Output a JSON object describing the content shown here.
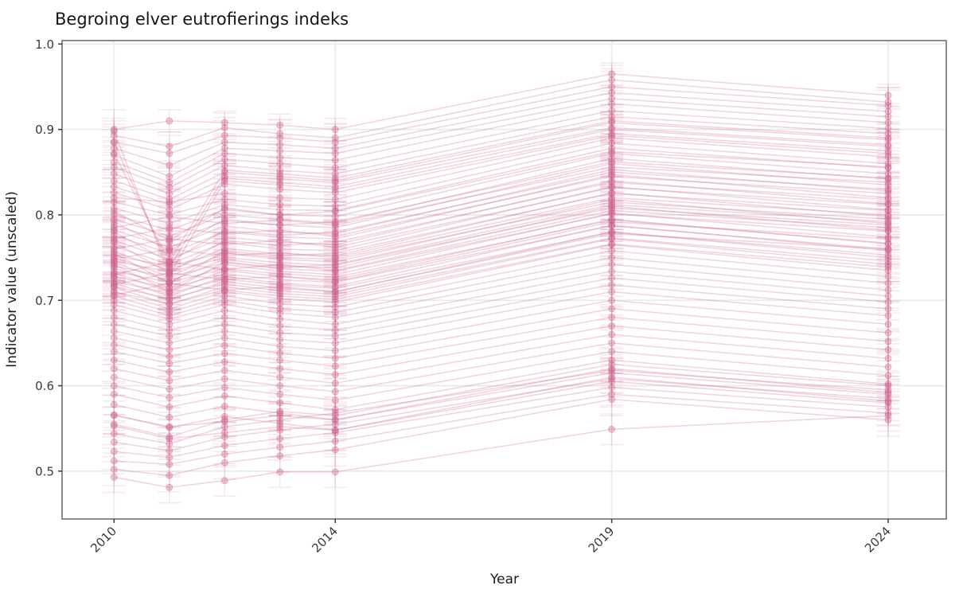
{
  "chart_data": {
    "type": "line",
    "title": "Begroing elver eutrofierings indeks",
    "xlabel": "Year",
    "ylabel": "Indicator value (unscaled)",
    "grid": true,
    "legend": false,
    "xlim": [
      2009.06,
      2025.05
    ],
    "ylim": [
      0.444,
      1.004
    ],
    "x_ticks": [
      2010,
      2014,
      2019,
      2024
    ],
    "x_tick_labels": [
      "2010",
      "2014",
      "2019",
      "2024"
    ],
    "y_ticks": [
      0.5,
      0.6,
      0.7,
      0.8,
      0.9,
      1.0
    ],
    "y_tick_labels": [
      "0.5",
      "0.6",
      "0.7",
      "0.8",
      "0.9",
      "1.0"
    ],
    "years": [
      2010,
      2011,
      2012,
      2013,
      2014,
      2019,
      2024
    ],
    "series_color": "#cc6690",
    "series": [
      {
        "v": [
          0.9,
          0.91,
          0.908,
          0.905,
          0.9,
          0.965,
          0.94
        ],
        "e": 0.013
      },
      {
        "v": [
          0.893,
          0.88,
          0.902,
          0.895,
          0.89,
          0.958,
          0.932
        ],
        "e": 0.017
      },
      {
        "v": [
          0.885,
          0.872,
          0.893,
          0.89,
          0.885,
          0.95,
          0.928
        ],
        "e": 0.021
      },
      {
        "v": [
          0.878,
          0.858,
          0.885,
          0.882,
          0.878,
          0.943,
          0.921
        ],
        "e": 0.025
      },
      {
        "v": [
          0.87,
          0.845,
          0.878,
          0.875,
          0.872,
          0.936,
          0.915
        ],
        "e": 0.015
      },
      {
        "v": [
          0.862,
          0.838,
          0.872,
          0.867,
          0.864,
          0.93,
          0.908
        ],
        "e": 0.019
      },
      {
        "v": [
          0.856,
          0.832,
          0.865,
          0.86,
          0.855,
          0.922,
          0.901
        ],
        "e": 0.023
      },
      {
        "v": [
          0.848,
          0.825,
          0.858,
          0.852,
          0.848,
          0.915,
          0.895
        ],
        "e": 0.011
      },
      {
        "v": [
          0.84,
          0.818,
          0.85,
          0.845,
          0.84,
          0.908,
          0.888
        ],
        "e": 0.013
      },
      {
        "v": [
          0.833,
          0.812,
          0.843,
          0.838,
          0.833,
          0.9,
          0.88
        ],
        "e": 0.017
      },
      {
        "v": [
          0.826,
          0.806,
          0.836,
          0.83,
          0.826,
          0.893,
          0.872
        ],
        "e": 0.021
      },
      {
        "v": [
          0.898,
          0.73,
          0.84,
          0.835,
          0.83,
          0.895,
          0.875
        ],
        "e": 0.025
      },
      {
        "v": [
          0.885,
          0.738,
          0.845,
          0.842,
          0.838,
          0.902,
          0.882
        ],
        "e": 0.015
      },
      {
        "v": [
          0.872,
          0.745,
          0.852,
          0.848,
          0.843,
          0.91,
          0.89
        ],
        "e": 0.019
      },
      {
        "v": [
          0.82,
          0.815,
          0.825,
          0.82,
          0.818,
          0.89,
          0.868
        ],
        "e": 0.023
      },
      {
        "v": [
          0.815,
          0.8,
          0.818,
          0.812,
          0.81,
          0.884,
          0.86
        ],
        "e": 0.011
      },
      {
        "v": [
          0.808,
          0.79,
          0.812,
          0.806,
          0.805,
          0.878,
          0.855
        ],
        "e": 0.013
      },
      {
        "v": [
          0.8,
          0.782,
          0.806,
          0.8,
          0.798,
          0.872,
          0.848
        ],
        "e": 0.017
      },
      {
        "v": [
          0.795,
          0.775,
          0.8,
          0.795,
          0.79,
          0.866,
          0.842
        ],
        "e": 0.021
      },
      {
        "v": [
          0.788,
          0.768,
          0.793,
          0.788,
          0.785,
          0.86,
          0.835
        ],
        "e": 0.025
      },
      {
        "v": [
          0.782,
          0.762,
          0.787,
          0.78,
          0.778,
          0.853,
          0.828
        ],
        "e": 0.015
      },
      {
        "v": [
          0.776,
          0.755,
          0.78,
          0.774,
          0.772,
          0.847,
          0.82
        ],
        "e": 0.019
      },
      {
        "v": [
          0.77,
          0.748,
          0.774,
          0.768,
          0.765,
          0.84,
          0.813
        ],
        "e": 0.023
      },
      {
        "v": [
          0.763,
          0.742,
          0.768,
          0.76,
          0.758,
          0.833,
          0.806
        ],
        "e": 0.011
      },
      {
        "v": [
          0.757,
          0.735,
          0.761,
          0.754,
          0.752,
          0.826,
          0.798
        ],
        "e": 0.013
      },
      {
        "v": [
          0.75,
          0.728,
          0.755,
          0.748,
          0.745,
          0.818,
          0.79
        ],
        "e": 0.017
      },
      {
        "v": [
          0.744,
          0.722,
          0.748,
          0.74,
          0.738,
          0.81,
          0.782
        ],
        "e": 0.021
      },
      {
        "v": [
          0.738,
          0.715,
          0.742,
          0.734,
          0.73,
          0.802,
          0.774
        ],
        "e": 0.025
      },
      {
        "v": [
          0.732,
          0.71,
          0.735,
          0.728,
          0.724,
          0.795,
          0.766
        ],
        "e": 0.015
      },
      {
        "v": [
          0.726,
          0.705,
          0.728,
          0.72,
          0.716,
          0.788,
          0.758
        ],
        "e": 0.019
      },
      {
        "v": [
          0.72,
          0.7,
          0.722,
          0.714,
          0.71,
          0.78,
          0.75
        ],
        "e": 0.023
      },
      {
        "v": [
          0.715,
          0.695,
          0.716,
          0.708,
          0.704,
          0.772,
          0.742
        ],
        "e": 0.011
      },
      {
        "v": [
          0.71,
          0.69,
          0.71,
          0.702,
          0.698,
          0.765,
          0.735
        ],
        "e": 0.013
      },
      {
        "v": [
          0.705,
          0.686,
          0.705,
          0.696,
          0.692,
          0.758,
          0.728
        ],
        "e": 0.017
      },
      {
        "v": [
          0.7,
          0.682,
          0.7,
          0.69,
          0.686,
          0.75,
          0.72
        ],
        "e": 0.021
      },
      {
        "v": [
          0.748,
          0.76,
          0.752,
          0.756,
          0.75,
          0.82,
          0.8
        ],
        "e": 0.025
      },
      {
        "v": [
          0.76,
          0.772,
          0.765,
          0.77,
          0.762,
          0.832,
          0.812
        ],
        "e": 0.015
      },
      {
        "v": [
          0.772,
          0.785,
          0.778,
          0.782,
          0.775,
          0.845,
          0.825
        ],
        "e": 0.019
      },
      {
        "v": [
          0.785,
          0.798,
          0.79,
          0.794,
          0.788,
          0.856,
          0.838
        ],
        "e": 0.023
      },
      {
        "v": [
          0.73,
          0.745,
          0.736,
          0.742,
          0.735,
          0.805,
          0.785
        ],
        "e": 0.011
      },
      {
        "v": [
          0.718,
          0.732,
          0.724,
          0.728,
          0.722,
          0.792,
          0.772
        ],
        "e": 0.013
      },
      {
        "v": [
          0.706,
          0.72,
          0.712,
          0.716,
          0.71,
          0.778,
          0.76
        ],
        "e": 0.017
      },
      {
        "v": [
          0.742,
          0.71,
          0.745,
          0.738,
          0.742,
          0.812,
          0.792
        ],
        "e": 0.021
      },
      {
        "v": [
          0.755,
          0.72,
          0.758,
          0.752,
          0.755,
          0.825,
          0.805
        ],
        "e": 0.025
      },
      {
        "v": [
          0.768,
          0.732,
          0.77,
          0.764,
          0.768,
          0.838,
          0.818
        ],
        "e": 0.015
      },
      {
        "v": [
          0.78,
          0.745,
          0.782,
          0.776,
          0.78,
          0.85,
          0.83
        ],
        "e": 0.019
      },
      {
        "v": [
          0.792,
          0.758,
          0.795,
          0.788,
          0.792,
          0.862,
          0.843
        ],
        "e": 0.023
      },
      {
        "v": [
          0.804,
          0.77,
          0.808,
          0.8,
          0.804,
          0.874,
          0.856
        ],
        "e": 0.011
      },
      {
        "v": [
          0.695,
          0.678,
          0.695,
          0.685,
          0.68,
          0.742,
          0.712
        ],
        "e": 0.013
      },
      {
        "v": [
          0.688,
          0.672,
          0.688,
          0.678,
          0.672,
          0.734,
          0.705
        ],
        "e": 0.017
      },
      {
        "v": [
          0.68,
          0.665,
          0.68,
          0.67,
          0.665,
          0.726,
          0.698
        ],
        "e": 0.021
      },
      {
        "v": [
          0.672,
          0.658,
          0.672,
          0.662,
          0.658,
          0.718,
          0.69
        ],
        "e": 0.025
      },
      {
        "v": [
          0.664,
          0.65,
          0.664,
          0.654,
          0.65,
          0.71,
          0.682
        ],
        "e": 0.015
      },
      {
        "v": [
          0.656,
          0.642,
          0.656,
          0.646,
          0.641,
          0.7,
          0.672
        ],
        "e": 0.019
      },
      {
        "v": [
          0.648,
          0.634,
          0.647,
          0.638,
          0.632,
          0.69,
          0.662
        ],
        "e": 0.023
      },
      {
        "v": [
          0.64,
          0.626,
          0.638,
          0.63,
          0.623,
          0.68,
          0.652
        ],
        "e": 0.011
      },
      {
        "v": [
          0.63,
          0.616,
          0.628,
          0.62,
          0.613,
          0.67,
          0.642
        ],
        "e": 0.013
      },
      {
        "v": [
          0.62,
          0.606,
          0.618,
          0.61,
          0.603,
          0.66,
          0.632
        ],
        "e": 0.017
      },
      {
        "v": [
          0.61,
          0.596,
          0.608,
          0.6,
          0.593,
          0.65,
          0.622
        ],
        "e": 0.021
      },
      {
        "v": [
          0.6,
          0.586,
          0.598,
          0.59,
          0.583,
          0.64,
          0.612
        ],
        "e": 0.025
      },
      {
        "v": [
          0.59,
          0.575,
          0.588,
          0.58,
          0.572,
          0.63,
          0.602
        ],
        "e": 0.015
      },
      {
        "v": [
          0.578,
          0.563,
          0.576,
          0.568,
          0.56,
          0.62,
          0.592
        ],
        "e": 0.019
      },
      {
        "v": [
          0.566,
          0.551,
          0.564,
          0.556,
          0.548,
          0.61,
          0.582
        ],
        "e": 0.023
      },
      {
        "v": [
          0.555,
          0.54,
          0.56,
          0.57,
          0.565,
          0.625,
          0.6
        ],
        "e": 0.011
      },
      {
        "v": [
          0.544,
          0.532,
          0.552,
          0.56,
          0.568,
          0.618,
          0.595
        ],
        "e": 0.013
      },
      {
        "v": [
          0.534,
          0.524,
          0.54,
          0.548,
          0.555,
          0.608,
          0.585
        ],
        "e": 0.017
      },
      {
        "v": [
          0.523,
          0.516,
          0.53,
          0.538,
          0.545,
          0.598,
          0.575
        ],
        "e": 0.021
      },
      {
        "v": [
          0.512,
          0.508,
          0.52,
          0.528,
          0.535,
          0.59,
          0.568
        ],
        "e": 0.015
      },
      {
        "v": [
          0.502,
          0.495,
          0.51,
          0.518,
          0.525,
          0.584,
          0.56
        ],
        "e": 0.019
      },
      {
        "v": [
          0.493,
          0.481,
          0.489,
          0.499,
          0.499,
          0.549,
          0.565
        ],
        "e": 0.018
      },
      {
        "v": [
          0.553,
          0.538,
          0.545,
          0.552,
          0.548,
          0.605,
          0.58
        ],
        "e": 0.013
      },
      {
        "v": [
          0.565,
          0.552,
          0.558,
          0.565,
          0.56,
          0.615,
          0.59
        ],
        "e": 0.017
      },
      {
        "v": [
          0.752,
          0.74,
          0.756,
          0.75,
          0.748,
          0.815,
          0.795
        ],
        "e": 0.021
      },
      {
        "v": [
          0.746,
          0.733,
          0.75,
          0.744,
          0.741,
          0.808,
          0.788
        ],
        "e": 0.025
      },
      {
        "v": [
          0.74,
          0.727,
          0.744,
          0.737,
          0.734,
          0.801,
          0.781
        ],
        "e": 0.015
      },
      {
        "v": [
          0.734,
          0.721,
          0.737,
          0.731,
          0.727,
          0.794,
          0.767
        ],
        "e": 0.019
      },
      {
        "v": [
          0.728,
          0.714,
          0.731,
          0.724,
          0.721,
          0.787,
          0.76
        ],
        "e": 0.023
      },
      {
        "v": [
          0.722,
          0.708,
          0.725,
          0.718,
          0.714,
          0.78,
          0.753
        ],
        "e": 0.011
      },
      {
        "v": [
          0.716,
          0.702,
          0.719,
          0.711,
          0.707,
          0.773,
          0.746
        ],
        "e": 0.013
      },
      {
        "v": [
          0.71,
          0.696,
          0.712,
          0.705,
          0.701,
          0.766,
          0.739
        ],
        "e": 0.017
      }
    ]
  },
  "style": {
    "series_color": "#cc6690",
    "grid_color": "#ebebeb",
    "border_color": "#6f6f6f",
    "tick_color": "#3a3a3a",
    "background": "#ffffff"
  }
}
